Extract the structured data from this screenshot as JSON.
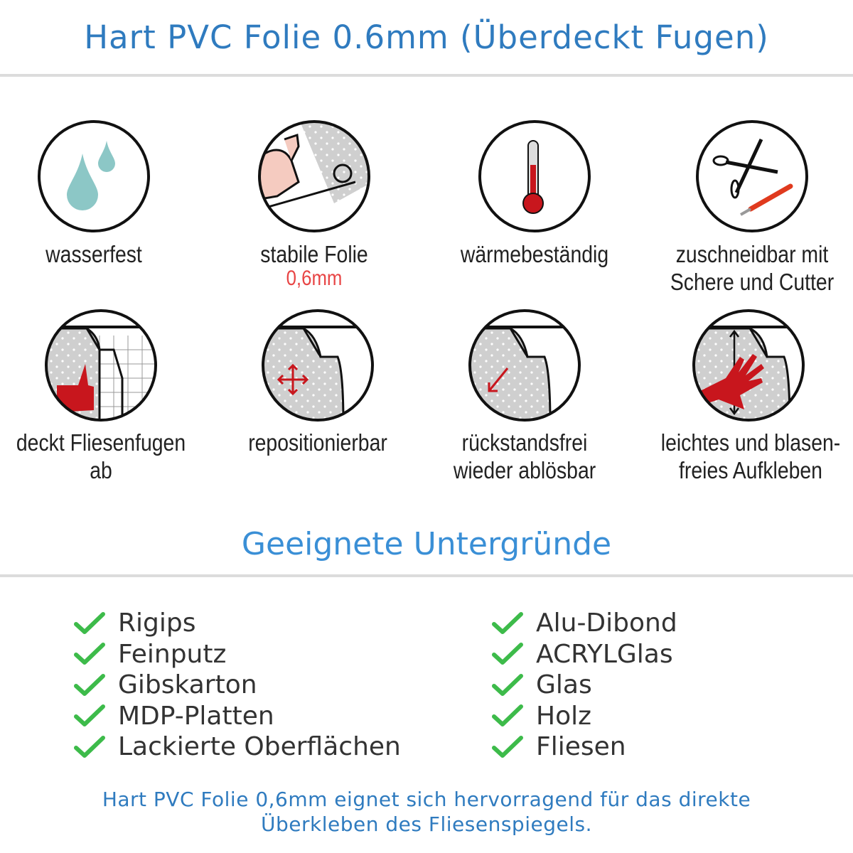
{
  "header": {
    "title": "Hart PVC Folie 0.6mm (Überdeckt Fugen)"
  },
  "features": [
    {
      "icon": "water-drops-icon",
      "line1": "wasserfest"
    },
    {
      "icon": "strong-arm-icon",
      "line1": "stabile Folie",
      "highlight": "0,6mm"
    },
    {
      "icon": "thermometer-icon",
      "line1": "wärmebeständig"
    },
    {
      "icon": "scissors-cutter-icon",
      "line1": "zuschneidbar mit",
      "line2": "Schere und Cutter"
    },
    {
      "icon": "thumbs-up-tiles-icon",
      "line1": "deckt Fliesenfugen ab"
    },
    {
      "icon": "move-arrows-icon",
      "line1": "repositionierbar"
    },
    {
      "icon": "peel-arrow-icon",
      "line1": "rückstandsfrei",
      "line2": "wieder ablösbar"
    },
    {
      "icon": "hand-smoothing-icon",
      "line1": "leichtes und blasen-",
      "line2": "freies Aufkleben"
    }
  ],
  "surfaces": {
    "heading": "Geeignete Untergründe",
    "left": [
      "Rigips",
      "Feinputz",
      "Gibskarton",
      "MDP-Platten",
      "Lackierte Oberflächen"
    ],
    "right": [
      "Alu-Dibond",
      "ACRYLGlas",
      "Glas",
      "Holz",
      "Fliesen"
    ]
  },
  "footer": {
    "line1": "Hart PVC Folie 0,6mm eignet sich hervorragend für das direkte",
    "line2": "Überkleben des Fliesenspiegels."
  },
  "colors": {
    "title": "#2f7bbf",
    "heading": "#3a8fd6",
    "check": "#3dbb4a",
    "accent_red": "#e84545",
    "icon_red": "#c8161d",
    "drop": "#8cc7c6"
  }
}
